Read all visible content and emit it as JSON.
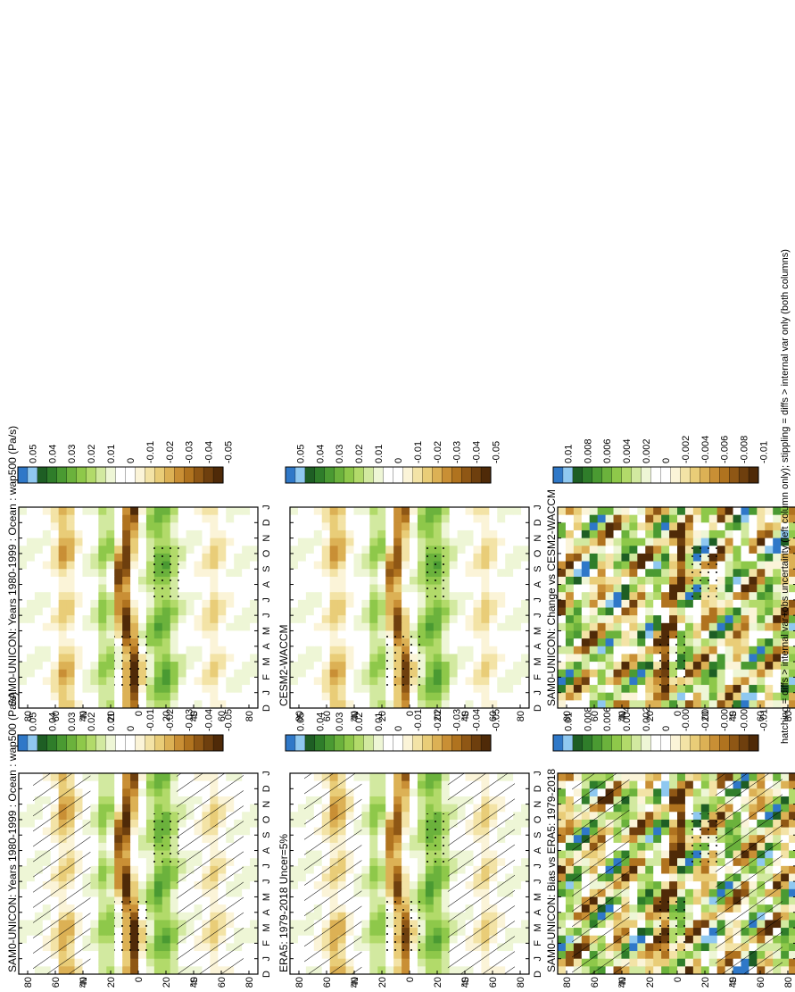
{
  "figure": {
    "footer": "hatching = diffs > internal var+obs uncertainty (left column only); stippling = diffs > internal var only (both columns)"
  },
  "colorbars": {
    "main": {
      "labels": [
        "0.05",
        "0.04",
        "0.03",
        "0.02",
        "0.01",
        "0",
        "-0.01",
        "-0.02",
        "-0.03",
        "-0.04",
        "-0.05"
      ],
      "colors": [
        "#2f78c8",
        "#8fc8f0",
        "#1e5e24",
        "#2f7d2a",
        "#4a9a32",
        "#6bb23c",
        "#8ec84a",
        "#b2da6a",
        "#d2e9a0",
        "#eef6d6",
        "#ffffff",
        "#ffffff",
        "#fbf4d8",
        "#f3e3a6",
        "#e9cd78",
        "#dcb155",
        "#c98f35",
        "#b0731f",
        "#8f5715",
        "#6e3f0e",
        "#4f2a08"
      ]
    },
    "diff": {
      "labels": [
        "0.01",
        "0.008",
        "0.006",
        "0.004",
        "0.002",
        "0",
        "-0.002",
        "-0.004",
        "-0.006",
        "-0.008",
        "-0.01"
      ],
      "colors": [
        "#2f78c8",
        "#8fc8f0",
        "#1e5e24",
        "#2f7d2a",
        "#4a9a32",
        "#6bb23c",
        "#8ec84a",
        "#b2da6a",
        "#d2e9a0",
        "#eef6d6",
        "#ffffff",
        "#ffffff",
        "#fbf4d8",
        "#f3e3a6",
        "#e9cd78",
        "#dcb155",
        "#c98f35",
        "#b0731f",
        "#8f5715",
        "#6e3f0e",
        "#4f2a08"
      ]
    }
  },
  "panels": {
    "p1": {
      "title": "SAM0-UNICON: Years 1980-1999 : Ocean : wap500 (Pa/s)"
    },
    "p2": {
      "title": "SAM0-UNICON: Years 1980-1999 : Ocean : wap500 (Pa/s)"
    },
    "p3": {
      "title": "ERA5: 1979-2018 Uncer=5%"
    },
    "p4": {
      "title": "CESM2-WACCM"
    },
    "p5": {
      "title": "SAM0-UNICON: Bias vs ERA5: 1979-2018"
    },
    "p6": {
      "title": "SAM0-UNICON: Change vs CESM2-WACCM"
    }
  },
  "chart_data": [
    {
      "type": "heatmap",
      "title": "SAM0-UNICON: Years 1980-1999 : Ocean : wap500 (Pa/s)",
      "x": [
        "D",
        "J",
        "F",
        "M",
        "A",
        "M",
        "J",
        "J",
        "A",
        "S",
        "O",
        "N",
        "D",
        "J"
      ],
      "y": [
        "80",
        "60",
        "40",
        "20",
        "0",
        "20",
        "40",
        "60",
        "80"
      ],
      "ylabel_north": "°N",
      "ylabel_south": "°S",
      "value_range": [
        -0.05,
        0.05
      ],
      "hatching": true,
      "stippling": true
    },
    {
      "type": "heatmap",
      "title": "SAM0-UNICON: Years 1980-1999 : Ocean : wap500 (Pa/s)",
      "x": [
        "D",
        "J",
        "F",
        "M",
        "A",
        "M",
        "J",
        "J",
        "A",
        "S",
        "O",
        "N",
        "D",
        "J"
      ],
      "y": [
        "80",
        "60",
        "40",
        "20",
        "0",
        "20",
        "40",
        "60",
        "80"
      ],
      "value_range": [
        -0.05,
        0.05
      ],
      "hatching": false,
      "stippling": true
    },
    {
      "type": "heatmap",
      "title": "ERA5: 1979-2018 Uncer=5%",
      "x": [
        "D",
        "J",
        "F",
        "M",
        "A",
        "M",
        "J",
        "J",
        "A",
        "S",
        "O",
        "N",
        "D",
        "J"
      ],
      "y": [
        "80",
        "60",
        "40",
        "20",
        "0",
        "20",
        "40",
        "60",
        "80"
      ],
      "value_range": [
        -0.05,
        0.05
      ],
      "hatching": true,
      "stippling": true
    },
    {
      "type": "heatmap",
      "title": "CESM2-WACCM",
      "x": [
        "D",
        "J",
        "F",
        "M",
        "A",
        "M",
        "J",
        "J",
        "A",
        "S",
        "O",
        "N",
        "D",
        "J"
      ],
      "y": [
        "80",
        "60",
        "40",
        "20",
        "0",
        "20",
        "40",
        "60",
        "80"
      ],
      "value_range": [
        -0.05,
        0.05
      ],
      "hatching": false,
      "stippling": true
    },
    {
      "type": "heatmap",
      "title": "SAM0-UNICON: Bias vs ERA5: 1979-2018",
      "x": [
        "D",
        "J",
        "F",
        "M",
        "A",
        "M",
        "J",
        "J",
        "A",
        "S",
        "O",
        "N",
        "D",
        "J"
      ],
      "y": [
        "80",
        "60",
        "40",
        "20",
        "0",
        "20",
        "40",
        "60",
        "80"
      ],
      "value_range": [
        -0.01,
        0.01
      ],
      "hatching": true,
      "stippling": true
    },
    {
      "type": "heatmap",
      "title": "SAM0-UNICON: Change vs CESM2-WACCM",
      "x": [
        "D",
        "J",
        "F",
        "M",
        "A",
        "M",
        "J",
        "J",
        "A",
        "S",
        "O",
        "N",
        "D",
        "J"
      ],
      "y": [
        "80",
        "60",
        "40",
        "20",
        "0",
        "20",
        "40",
        "60",
        "80"
      ],
      "value_range": [
        -0.01,
        0.01
      ],
      "hatching": false,
      "stippling": true
    }
  ]
}
